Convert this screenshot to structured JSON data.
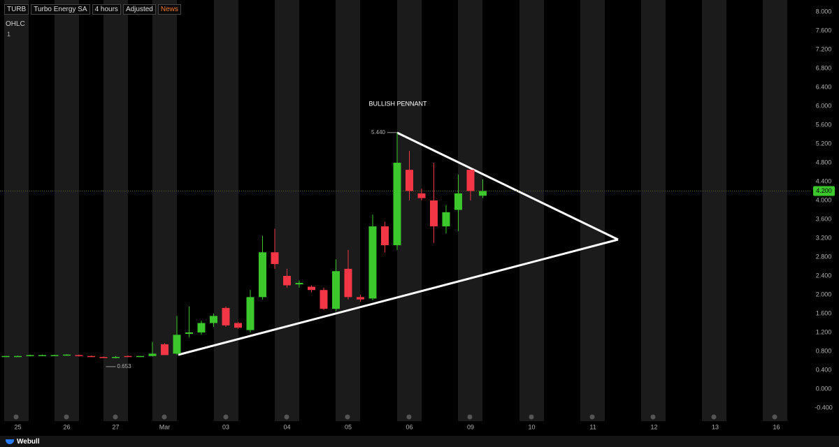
{
  "header": {
    "symbol": "TURB",
    "name": "Turbo Energy SA",
    "interval": "4 hours",
    "adjust": "Adjusted",
    "news": "News",
    "indicator": "OHLC",
    "pane": "1"
  },
  "footer": {
    "brand": "Webull"
  },
  "chart_data": {
    "type": "candlestick",
    "annotations": {
      "pattern": "BULLISH PENNANT",
      "high": {
        "value": 5.44,
        "label": "5.440"
      },
      "low": {
        "value": 0.653,
        "label": "0.653"
      },
      "last_price": {
        "value": 4.2,
        "label": "4.200"
      }
    },
    "up_color": "#3cc72d",
    "down_color": "#f23645",
    "categories": [
      null,
      "25",
      null,
      null,
      null,
      "26",
      null,
      null,
      null,
      "27",
      null,
      null,
      null,
      "Mar",
      null,
      null,
      null,
      null,
      "03",
      null,
      null,
      null,
      null,
      "04",
      null,
      null,
      null,
      null,
      "05",
      null,
      null,
      null,
      null,
      "06",
      null,
      null,
      null,
      null,
      "09",
      null,
      null,
      null,
      null,
      "10",
      null,
      null,
      null,
      null,
      "11",
      null,
      null,
      null,
      null,
      "12",
      null,
      null,
      null,
      null,
      "13",
      null,
      null,
      null,
      null,
      "16",
      null,
      null
    ],
    "open": [
      0.69,
      0.7,
      0.7,
      0.72,
      0.72,
      0.72,
      0.72,
      0.7,
      0.68,
      0.67,
      0.7,
      0.69,
      0.7,
      0.95,
      0.75,
      1.17,
      1.2,
      1.4,
      1.72,
      1.4,
      1.25,
      1.95,
      2.9,
      2.4,
      2.22,
      2.17,
      2.1,
      1.7,
      2.55,
      1.95,
      1.92,
      3.45,
      3.05,
      4.65,
      4.15,
      4.0,
      3.45,
      3.8,
      4.65,
      4.1,
      null,
      null,
      null,
      null,
      null,
      null,
      null,
      null,
      null,
      null,
      null,
      null,
      null,
      null,
      null,
      null,
      null,
      null,
      null,
      null,
      null,
      null,
      null,
      null,
      null,
      null
    ],
    "high": [
      0.7,
      0.71,
      0.73,
      0.73,
      0.73,
      0.74,
      0.73,
      0.71,
      0.69,
      0.7,
      0.71,
      0.7,
      1.0,
      0.97,
      1.55,
      1.75,
      1.45,
      1.6,
      1.75,
      1.42,
      2.1,
      3.25,
      3.4,
      2.55,
      2.3,
      2.2,
      2.15,
      2.75,
      2.95,
      2.0,
      3.7,
      3.55,
      5.44,
      5.05,
      4.25,
      4.8,
      3.9,
      4.55,
      4.65,
      4.45,
      null,
      null,
      null,
      null,
      null,
      null,
      null,
      null,
      null,
      null,
      null,
      null,
      null,
      null,
      null,
      null,
      null,
      null,
      null,
      null,
      null,
      null,
      null,
      null,
      null,
      null
    ],
    "low": [
      0.68,
      0.69,
      0.69,
      0.71,
      0.71,
      0.71,
      0.69,
      0.68,
      0.67,
      0.653,
      0.68,
      0.68,
      0.69,
      0.72,
      0.72,
      1.1,
      1.15,
      1.32,
      1.32,
      1.28,
      1.2,
      1.9,
      2.55,
      2.15,
      2.15,
      2.05,
      1.68,
      1.65,
      1.9,
      1.85,
      1.88,
      2.9,
      2.95,
      4.0,
      4.0,
      3.1,
      3.3,
      3.35,
      4.0,
      4.05,
      null,
      null,
      null,
      null,
      null,
      null,
      null,
      null,
      null,
      null,
      null,
      null,
      null,
      null,
      null,
      null,
      null,
      null,
      null,
      null,
      null,
      null,
      null,
      null,
      null,
      null
    ],
    "close": [
      0.7,
      0.7,
      0.72,
      0.72,
      0.72,
      0.73,
      0.7,
      0.68,
      0.67,
      0.68,
      0.68,
      0.7,
      0.75,
      0.72,
      1.15,
      1.2,
      1.4,
      1.55,
      1.35,
      1.3,
      1.95,
      2.9,
      2.65,
      2.2,
      2.25,
      2.1,
      1.7,
      2.5,
      1.95,
      1.9,
      3.45,
      3.05,
      4.8,
      4.2,
      4.05,
      3.45,
      3.75,
      4.15,
      4.2,
      4.2,
      null,
      null,
      null,
      null,
      null,
      null,
      null,
      null,
      null,
      null,
      null,
      null,
      null,
      null,
      null,
      null,
      null,
      null,
      null,
      null,
      null,
      null,
      null,
      null,
      null,
      null
    ],
    "ylim": [
      -0.6,
      8.2
    ],
    "yticks": [
      {
        "value": -0.4,
        "label": "-0.400"
      },
      {
        "value": 0,
        "label": "0.000"
      },
      {
        "value": 0.4,
        "label": "0.400"
      },
      {
        "value": 0.8,
        "label": "0.800"
      },
      {
        "value": 1.2,
        "label": "1.200"
      },
      {
        "value": 1.6,
        "label": "1.600"
      },
      {
        "value": 2,
        "label": "2.000"
      },
      {
        "value": 2.4,
        "label": "2.400"
      },
      {
        "value": 2.8,
        "label": "2.800"
      },
      {
        "value": 3.2,
        "label": "3.200"
      },
      {
        "value": 3.6,
        "label": "3.600"
      },
      {
        "value": 4,
        "label": "4.000"
      },
      {
        "value": 4.4,
        "label": "4.400"
      },
      {
        "value": 4.8,
        "label": "4.800"
      },
      {
        "value": 5.2,
        "label": "5.200"
      },
      {
        "value": 5.6,
        "label": "5.600"
      },
      {
        "value": 6,
        "label": "6.000"
      },
      {
        "value": 6.4,
        "label": "6.400"
      },
      {
        "value": 6.8,
        "label": "6.800"
      },
      {
        "value": 7.2,
        "label": "7.200"
      },
      {
        "value": 7.6,
        "label": "7.600"
      },
      {
        "value": 8,
        "label": "8.000"
      }
    ],
    "grid": false
  }
}
